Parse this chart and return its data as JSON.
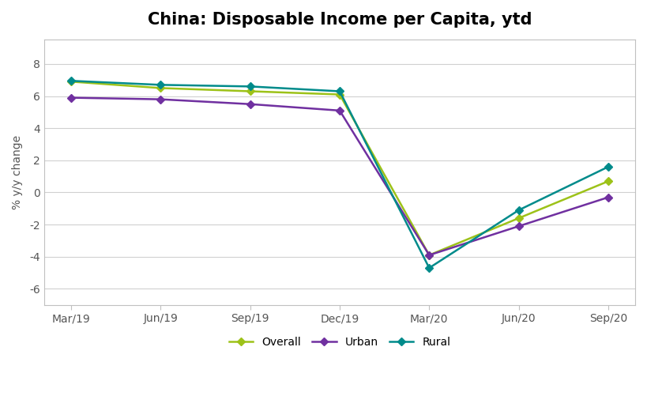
{
  "title": "China: Disposable Income per Capita, ytd",
  "ylabel": "% y/y change",
  "x_labels": [
    "Mar/19",
    "Jun/19",
    "Sep/19",
    "Dec/19",
    "Mar/20",
    "Jun/20",
    "Sep/20"
  ],
  "series": [
    {
      "name": "Overall",
      "values": [
        6.9,
        6.5,
        6.3,
        6.1,
        -3.9,
        -1.6,
        0.7
      ],
      "color": "#9dc219",
      "marker": "D"
    },
    {
      "name": "Urban",
      "values": [
        5.9,
        5.8,
        5.5,
        5.1,
        -3.9,
        -2.1,
        -0.3
      ],
      "color": "#7030a0",
      "marker": "D"
    },
    {
      "name": "Rural",
      "values": [
        6.95,
        6.7,
        6.6,
        6.3,
        -4.7,
        -1.1,
        1.6
      ],
      "color": "#008b8b",
      "marker": "D"
    }
  ],
  "ylim": [
    -7,
    9.5
  ],
  "yticks": [
    -6,
    -4,
    -2,
    0,
    2,
    4,
    6,
    8
  ],
  "background_color": "#ffffff",
  "grid_color": "#d0d0d0",
  "border_color": "#c0c0c0",
  "title_fontsize": 15,
  "label_fontsize": 10,
  "tick_fontsize": 10,
  "legend_fontsize": 10
}
